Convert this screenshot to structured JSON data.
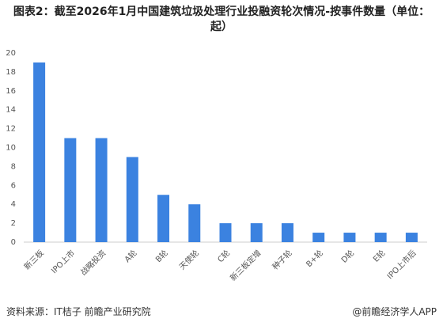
{
  "chart_data": {
    "type": "bar",
    "title": "图表2：截至2026年1月中国建筑垃圾处理行业投融资轮次情况-按事件数量（单位：起）",
    "categories": [
      "新三板",
      "IPO上市",
      "战略投资",
      "A轮",
      "B轮",
      "天使轮",
      "C轮",
      "新三板定增",
      "种子轮",
      "B+轮",
      "D轮",
      "E轮",
      "IPO上市后"
    ],
    "values": [
      19,
      11,
      11,
      9,
      5,
      4,
      2,
      2,
      2,
      1,
      1,
      1,
      1
    ],
    "color": "#3b82e0",
    "ylim": [
      0,
      20
    ],
    "yticks": [
      0,
      2,
      4,
      6,
      8,
      10,
      12,
      14,
      16,
      18,
      20
    ],
    "grid": false,
    "source": "资料来源：IT桔子 前瞻产业研究院",
    "brand": "@前瞻经济学人APP"
  }
}
